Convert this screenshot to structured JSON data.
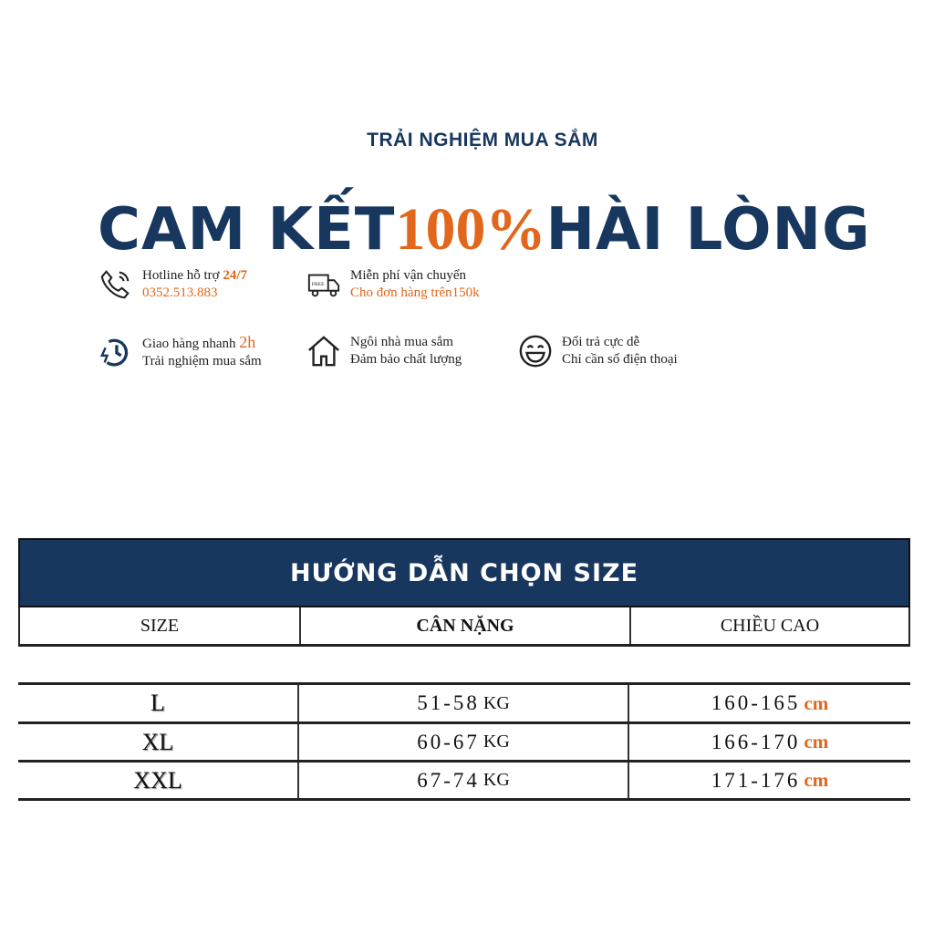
{
  "header": {
    "subtitle": "TRẢI NGHIỆM MUA SẮM",
    "title_a": "CAM KẾT",
    "title_pct": "100%",
    "title_b": "HÀI LÒNG"
  },
  "features": [
    {
      "icon": "phone-icon",
      "line1": "Hotline hỗ trợ ",
      "line1_accent": "24/7",
      "line2": "0352.513.883"
    },
    {
      "icon": "delivery-truck-icon",
      "line1": "Miễn phí vận chuyển",
      "line2": "Cho đơn hàng trên150k"
    },
    {
      "icon": "fast-clock-icon",
      "line1": "Giao hàng nhanh ",
      "line1_accent": "2h",
      "line2": "Trải nghiệm mua sắm"
    },
    {
      "icon": "house-icon",
      "line1": "Ngôi nhà mua sắm",
      "line2": "Đảm bảo chất lượng"
    },
    {
      "icon": "smile-icon",
      "line1": "Đổi trả cực dễ",
      "line2": "Chỉ cần số điện thoại"
    }
  ],
  "size_table": {
    "title": "HƯỚNG DẪN CHỌN SIZE",
    "columns": [
      "SIZE",
      "CÂN NẶNG",
      "CHIỀU CAO"
    ],
    "rows": [
      {
        "size": "L",
        "weight": "51-58",
        "weight_unit": "KG",
        "height": "160-165",
        "height_unit": "cm"
      },
      {
        "size": "XL",
        "weight": "60-67",
        "weight_unit": "KG",
        "height": "166-170",
        "height_unit": "cm"
      },
      {
        "size": "XXL",
        "weight": "67-74",
        "weight_unit": "KG",
        "height": "171-176",
        "height_unit": "cm"
      }
    ]
  },
  "colors": {
    "navy": "#17375e",
    "orange": "#e2661b"
  }
}
